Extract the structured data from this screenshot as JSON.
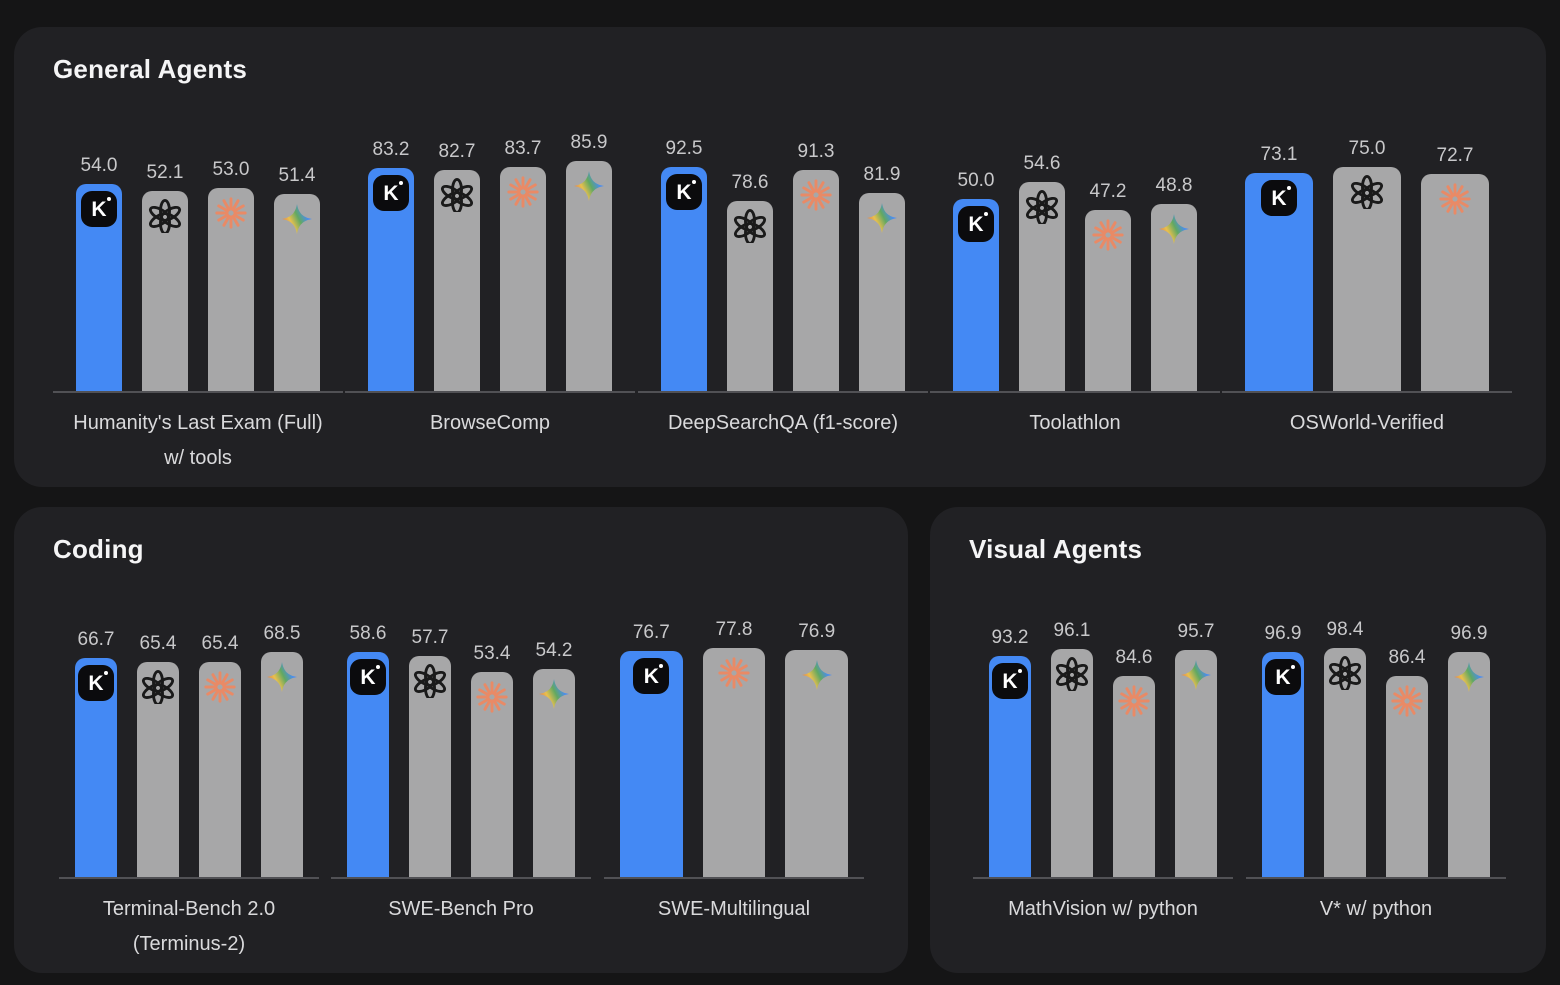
{
  "colors": {
    "page_bg": "#151516",
    "panel_bg": "#212124",
    "kimi_blue": "#4489f4",
    "bar_gray": "#a7a7a8",
    "baseline_gray": "#515155",
    "value_text": "#c8c8ca",
    "label_text": "#dadadc",
    "title_text": "#f5f5f6",
    "claude_orange": "#e98a66",
    "gemini_blue": "#4285f4"
  },
  "models": {
    "kimi": "kimi-k-icon",
    "openai": "openai-icon",
    "claude": "claude-icon",
    "gemini": "gemini-icon"
  },
  "panels": [
    {
      "title": "General Agents",
      "charts": [
        {
          "label_lines": [
            "Humanity's Last Exam (Full)",
            "w/ tools"
          ],
          "ylim_max": 60,
          "bars": [
            [
              "kimi",
              54.0
            ],
            [
              "openai",
              52.1
            ],
            [
              "claude",
              53.0
            ],
            [
              "gemini",
              51.4
            ]
          ]
        },
        {
          "label_lines": [
            "BrowseComp"
          ],
          "ylim_max": 86,
          "bars": [
            [
              "kimi",
              83.2
            ],
            [
              "openai",
              82.7
            ],
            [
              "claude",
              83.7
            ],
            [
              "gemini",
              85.9
            ]
          ]
        },
        {
          "label_lines": [
            "DeepSearchQA (f1-score)"
          ],
          "ylim_max": 95,
          "bars": [
            [
              "kimi",
              92.5
            ],
            [
              "openai",
              78.6
            ],
            [
              "claude",
              91.3
            ],
            [
              "gemini",
              81.9
            ]
          ]
        },
        {
          "label_lines": [
            "Toolathlon"
          ],
          "ylim_max": 60,
          "bars": [
            [
              "kimi",
              50.0
            ],
            [
              "openai",
              54.6
            ],
            [
              "claude",
              47.2
            ],
            [
              "gemini",
              48.8
            ]
          ]
        },
        {
          "label_lines": [
            "OSWorld-Verified"
          ],
          "ylim_max": 77,
          "bars": [
            [
              "kimi",
              73.1
            ],
            [
              "openai",
              75.0
            ],
            [
              "claude",
              72.7
            ]
          ]
        }
      ]
    },
    {
      "title": "Coding",
      "charts": [
        {
          "label_lines": [
            "Terminal-Bench 2.0",
            "(Terminus-2)"
          ],
          "ylim_max": 70,
          "bars": [
            [
              "kimi",
              66.7
            ],
            [
              "openai",
              65.4
            ],
            [
              "claude",
              65.4
            ],
            [
              "gemini",
              68.5
            ]
          ]
        },
        {
          "label_lines": [
            "SWE-Bench Pro"
          ],
          "ylim_max": 60,
          "bars": [
            [
              "kimi",
              58.6
            ],
            [
              "openai",
              57.7
            ],
            [
              "claude",
              53.4
            ],
            [
              "gemini",
              54.2
            ]
          ]
        },
        {
          "label_lines": [
            "SWE-Multilingual"
          ],
          "ylim_max": 78,
          "bars": [
            [
              "kimi",
              76.7
            ],
            [
              "claude",
              77.8
            ],
            [
              "gemini",
              76.9
            ]
          ]
        }
      ]
    },
    {
      "title": "Visual Agents",
      "charts": [
        {
          "label_lines": [
            "MathVision w/ python"
          ],
          "ylim_max": 97,
          "bars": [
            [
              "kimi",
              93.2
            ],
            [
              "openai",
              96.1
            ],
            [
              "claude",
              84.6
            ],
            [
              "gemini",
              95.7
            ]
          ]
        },
        {
          "label_lines": [
            "V* w/ python"
          ],
          "ylim_max": 99,
          "bars": [
            [
              "kimi",
              96.9
            ],
            [
              "openai",
              98.4
            ],
            [
              "claude",
              86.4
            ],
            [
              "gemini",
              96.9
            ]
          ]
        }
      ]
    }
  ],
  "chart_data": [
    {
      "type": "bar",
      "panel": "General Agents",
      "title": "Humanity's Last Exam (Full) w/ tools",
      "categories": [
        "kimi",
        "openai",
        "claude",
        "gemini"
      ],
      "values": [
        54.0,
        52.1,
        53.0,
        51.4
      ],
      "ylim": [
        0,
        60
      ]
    },
    {
      "type": "bar",
      "panel": "General Agents",
      "title": "BrowseComp",
      "categories": [
        "kimi",
        "openai",
        "claude",
        "gemini"
      ],
      "values": [
        83.2,
        82.7,
        83.7,
        85.9
      ],
      "ylim": [
        0,
        86
      ]
    },
    {
      "type": "bar",
      "panel": "General Agents",
      "title": "DeepSearchQA (f1-score)",
      "categories": [
        "kimi",
        "openai",
        "claude",
        "gemini"
      ],
      "values": [
        92.5,
        78.6,
        91.3,
        81.9
      ],
      "ylim": [
        0,
        95
      ]
    },
    {
      "type": "bar",
      "panel": "General Agents",
      "title": "Toolathlon",
      "categories": [
        "kimi",
        "openai",
        "claude",
        "gemini"
      ],
      "values": [
        50.0,
        54.6,
        47.2,
        48.8
      ],
      "ylim": [
        0,
        60
      ]
    },
    {
      "type": "bar",
      "panel": "General Agents",
      "title": "OSWorld-Verified",
      "categories": [
        "kimi",
        "openai",
        "claude"
      ],
      "values": [
        73.1,
        75.0,
        72.7
      ],
      "ylim": [
        0,
        77
      ]
    },
    {
      "type": "bar",
      "panel": "Coding",
      "title": "Terminal-Bench 2.0 (Terminus-2)",
      "categories": [
        "kimi",
        "openai",
        "claude",
        "gemini"
      ],
      "values": [
        66.7,
        65.4,
        65.4,
        68.5
      ],
      "ylim": [
        0,
        70
      ]
    },
    {
      "type": "bar",
      "panel": "Coding",
      "title": "SWE-Bench Pro",
      "categories": [
        "kimi",
        "openai",
        "claude",
        "gemini"
      ],
      "values": [
        58.6,
        57.7,
        53.4,
        54.2
      ],
      "ylim": [
        0,
        60
      ]
    },
    {
      "type": "bar",
      "panel": "Coding",
      "title": "SWE-Multilingual",
      "categories": [
        "kimi",
        "claude",
        "gemini"
      ],
      "values": [
        76.7,
        77.8,
        76.9
      ],
      "ylim": [
        0,
        78
      ]
    },
    {
      "type": "bar",
      "panel": "Visual Agents",
      "title": "MathVision w/ python",
      "categories": [
        "kimi",
        "openai",
        "claude",
        "gemini"
      ],
      "values": [
        93.2,
        96.1,
        84.6,
        95.7
      ],
      "ylim": [
        0,
        97
      ]
    },
    {
      "type": "bar",
      "panel": "Visual Agents",
      "title": "V* w/ python",
      "categories": [
        "kimi",
        "openai",
        "claude",
        "gemini"
      ],
      "values": [
        96.9,
        98.4,
        86.4,
        96.9
      ],
      "ylim": [
        0,
        99
      ]
    }
  ]
}
